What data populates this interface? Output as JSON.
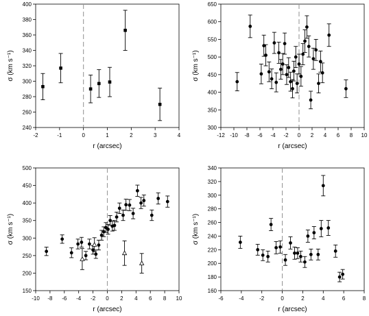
{
  "chart_data": [
    {
      "type": "scatter",
      "xlabel": "r (arcsec)",
      "ylabel": "σ (km s⁻¹)",
      "xlim": [
        -2,
        4
      ],
      "ylim": [
        240,
        400
      ],
      "xticks": [
        -2,
        -1,
        0,
        1,
        2,
        3,
        4
      ],
      "yticks": [
        240,
        260,
        280,
        300,
        320,
        340,
        360,
        380,
        400
      ],
      "zero_line": true,
      "series": [
        {
          "marker": "filled-square",
          "points": [
            {
              "x": -1.7,
              "y": 293,
              "err": 17
            },
            {
              "x": -0.95,
              "y": 317,
              "err": 19
            },
            {
              "x": 0.3,
              "y": 290,
              "err": 18
            },
            {
              "x": 0.65,
              "y": 297,
              "err": 18
            },
            {
              "x": 1.1,
              "y": 299,
              "err": 19
            },
            {
              "x": 1.75,
              "y": 366,
              "err": 26
            },
            {
              "x": 3.2,
              "y": 270,
              "err": 21
            }
          ]
        }
      ]
    },
    {
      "type": "scatter",
      "xlabel": "r (arcsec)",
      "ylabel": "σ (km s⁻¹)",
      "xlim": [
        -12,
        10
      ],
      "ylim": [
        300,
        650
      ],
      "xticks": [
        -12,
        -10,
        -8,
        -6,
        -4,
        -2,
        0,
        2,
        4,
        6,
        8,
        10
      ],
      "yticks": [
        300,
        350,
        400,
        450,
        500,
        550,
        600,
        650
      ],
      "zero_line": true,
      "series": [
        {
          "marker": "filled-circle",
          "points": [
            {
              "x": -9.5,
              "y": 430,
              "err": 26
            },
            {
              "x": -7.5,
              "y": 587,
              "err": 32
            },
            {
              "x": -5.8,
              "y": 452,
              "err": 28
            },
            {
              "x": -5.4,
              "y": 532,
              "err": 30
            },
            {
              "x": -5.1,
              "y": 505,
              "err": 30
            },
            {
              "x": -4.6,
              "y": 458,
              "err": 28
            },
            {
              "x": -4.2,
              "y": 438,
              "err": 28
            },
            {
              "x": -3.8,
              "y": 540,
              "err": 30
            },
            {
              "x": -3.5,
              "y": 428,
              "err": 27
            },
            {
              "x": -3.1,
              "y": 512,
              "err": 30
            },
            {
              "x": -2.8,
              "y": 465,
              "err": 28
            },
            {
              "x": -2.5,
              "y": 480,
              "err": 30
            },
            {
              "x": -2.2,
              "y": 538,
              "err": 30
            },
            {
              "x": -1.9,
              "y": 450,
              "err": 28
            },
            {
              "x": -1.6,
              "y": 470,
              "err": 28
            },
            {
              "x": -1.3,
              "y": 430,
              "err": 27
            },
            {
              "x": -1.0,
              "y": 410,
              "err": 26
            },
            {
              "x": -0.8,
              "y": 460,
              "err": 28
            },
            {
              "x": -0.5,
              "y": 500,
              "err": 30
            },
            {
              "x": -0.3,
              "y": 425,
              "err": 27
            },
            {
              "x": 0.0,
              "y": 480,
              "err": 28
            },
            {
              "x": 0.3,
              "y": 445,
              "err": 28
            },
            {
              "x": 0.6,
              "y": 508,
              "err": 30
            },
            {
              "x": 0.9,
              "y": 545,
              "err": 32
            },
            {
              "x": 1.2,
              "y": 585,
              "err": 32
            },
            {
              "x": 1.5,
              "y": 530,
              "err": 30
            },
            {
              "x": 1.8,
              "y": 378,
              "err": 25
            },
            {
              "x": 2.2,
              "y": 495,
              "err": 30
            },
            {
              "x": 2.6,
              "y": 520,
              "err": 30
            },
            {
              "x": 3.0,
              "y": 425,
              "err": 27
            },
            {
              "x": 3.3,
              "y": 487,
              "err": 30
            },
            {
              "x": 3.6,
              "y": 455,
              "err": 28
            },
            {
              "x": 4.6,
              "y": 562,
              "err": 32
            },
            {
              "x": 7.2,
              "y": 410,
              "err": 25
            }
          ]
        }
      ]
    },
    {
      "type": "scatter",
      "xlabel": "r (arcsec)",
      "ylabel": "σ (km s⁻¹)",
      "xlim": [
        -10,
        10
      ],
      "ylim": [
        150,
        500
      ],
      "xticks": [
        -10,
        -8,
        -6,
        -4,
        -2,
        0,
        2,
        4,
        6,
        8,
        10
      ],
      "yticks": [
        150,
        200,
        250,
        300,
        350,
        400,
        450,
        500
      ],
      "zero_line": true,
      "series": [
        {
          "marker": "filled-circle",
          "points": [
            {
              "x": -8.5,
              "y": 262,
              "err": 12
            },
            {
              "x": -6.3,
              "y": 297,
              "err": 12
            },
            {
              "x": -5.0,
              "y": 258,
              "err": 14
            },
            {
              "x": -4.1,
              "y": 283,
              "err": 14
            },
            {
              "x": -3.6,
              "y": 288,
              "err": 14
            },
            {
              "x": -3.0,
              "y": 250,
              "err": 12
            },
            {
              "x": -2.5,
              "y": 283,
              "err": 14
            },
            {
              "x": -2.0,
              "y": 266,
              "err": 12
            },
            {
              "x": -1.6,
              "y": 254,
              "err": 12
            },
            {
              "x": -1.2,
              "y": 280,
              "err": 14
            },
            {
              "x": -0.8,
              "y": 308,
              "err": 14
            },
            {
              "x": -0.5,
              "y": 318,
              "err": 14
            },
            {
              "x": -0.2,
              "y": 330,
              "err": 14
            },
            {
              "x": 0.1,
              "y": 325,
              "err": 14
            },
            {
              "x": 0.4,
              "y": 350,
              "err": 14
            },
            {
              "x": 0.7,
              "y": 334,
              "err": 14
            },
            {
              "x": 1.0,
              "y": 336,
              "err": 14
            },
            {
              "x": 1.3,
              "y": 360,
              "err": 14
            },
            {
              "x": 1.7,
              "y": 385,
              "err": 15
            },
            {
              "x": 2.2,
              "y": 365,
              "err": 15
            },
            {
              "x": 2.6,
              "y": 395,
              "err": 16
            },
            {
              "x": 3.1,
              "y": 394,
              "err": 16
            },
            {
              "x": 3.6,
              "y": 370,
              "err": 15
            },
            {
              "x": 4.2,
              "y": 435,
              "err": 16
            },
            {
              "x": 4.7,
              "y": 400,
              "err": 16
            },
            {
              "x": 5.1,
              "y": 407,
              "err": 16
            },
            {
              "x": 6.2,
              "y": 365,
              "err": 15
            },
            {
              "x": 7.1,
              "y": 413,
              "err": 16
            },
            {
              "x": 8.4,
              "y": 404,
              "err": 16
            }
          ]
        },
        {
          "marker": "open-triangle",
          "points": [
            {
              "x": -3.5,
              "y": 240,
              "err": 30
            },
            {
              "x": -1.8,
              "y": 281,
              "err": 20
            },
            {
              "x": 2.4,
              "y": 257,
              "err": 35
            },
            {
              "x": 4.8,
              "y": 228,
              "err": 28
            }
          ]
        }
      ]
    },
    {
      "type": "scatter",
      "xlabel": "r (arcsec)",
      "ylabel": "σ (km s⁻¹)",
      "xlim": [
        -6,
        8
      ],
      "ylim": [
        160,
        340
      ],
      "xticks": [
        -6,
        -4,
        -2,
        0,
        2,
        4,
        6,
        8
      ],
      "yticks": [
        160,
        180,
        200,
        220,
        240,
        260,
        280,
        300,
        320,
        340
      ],
      "zero_line": true,
      "series": [
        {
          "marker": "filled-circle",
          "points": [
            {
              "x": -4.1,
              "y": 231,
              "err": 9
            },
            {
              "x": -2.4,
              "y": 220,
              "err": 8
            },
            {
              "x": -1.9,
              "y": 212,
              "err": 8
            },
            {
              "x": -1.4,
              "y": 210,
              "err": 8
            },
            {
              "x": -1.1,
              "y": 257,
              "err": 9
            },
            {
              "x": -0.6,
              "y": 223,
              "err": 9
            },
            {
              "x": -0.2,
              "y": 224,
              "err": 9
            },
            {
              "x": 0.3,
              "y": 205,
              "err": 8
            },
            {
              "x": 0.8,
              "y": 230,
              "err": 9
            },
            {
              "x": 1.2,
              "y": 215,
              "err": 9
            },
            {
              "x": 1.5,
              "y": 215,
              "err": 8
            },
            {
              "x": 1.8,
              "y": 210,
              "err": 8
            },
            {
              "x": 2.2,
              "y": 202,
              "err": 8
            },
            {
              "x": 2.5,
              "y": 240,
              "err": 9
            },
            {
              "x": 2.8,
              "y": 213,
              "err": 8
            },
            {
              "x": 3.1,
              "y": 245,
              "err": 9
            },
            {
              "x": 3.5,
              "y": 213,
              "err": 8
            },
            {
              "x": 3.8,
              "y": 251,
              "err": 12
            },
            {
              "x": 4.0,
              "y": 314,
              "err": 15
            },
            {
              "x": 4.5,
              "y": 252,
              "err": 11
            },
            {
              "x": 5.2,
              "y": 218,
              "err": 9
            },
            {
              "x": 5.6,
              "y": 180,
              "err": 7
            },
            {
              "x": 5.9,
              "y": 184,
              "err": 7
            }
          ]
        }
      ]
    }
  ]
}
